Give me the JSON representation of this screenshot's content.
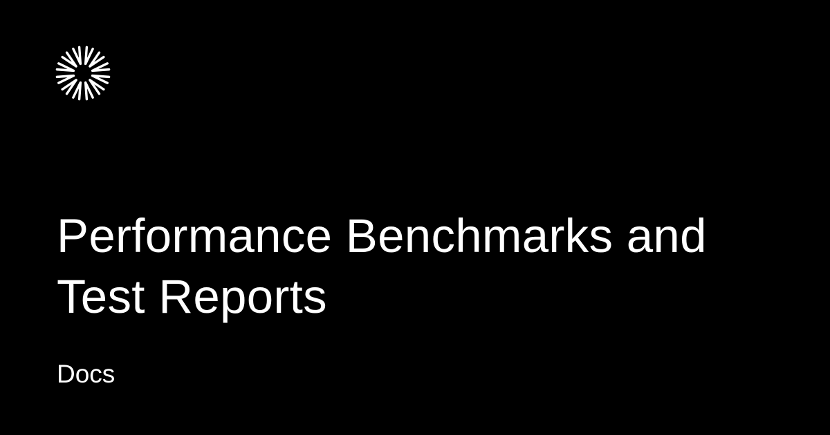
{
  "logo": {
    "icon": "starburst-icon",
    "color": "#ffffff"
  },
  "page": {
    "title": "Performance Benchmarks and Test Reports",
    "subtitle": "Docs"
  },
  "colors": {
    "background": "#000000",
    "text": "#ffffff"
  }
}
